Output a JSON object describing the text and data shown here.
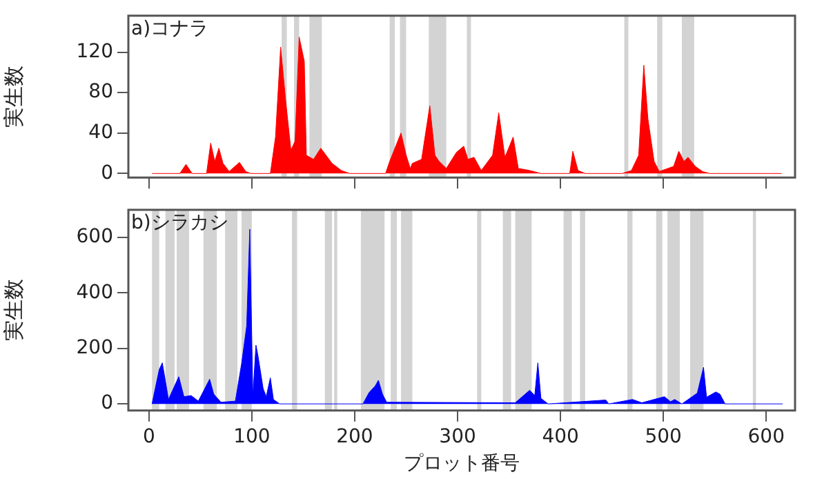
{
  "chart_data": [
    {
      "type": "area",
      "title": "a)コナラ",
      "ylabel": "実生数",
      "tick_labels": "y",
      "grid": false,
      "xlim": [
        -20,
        628
      ],
      "xticks": [
        0,
        100,
        200,
        300,
        400,
        500,
        600
      ],
      "ylim": [
        -4,
        156
      ],
      "yticks": [
        0,
        40,
        80,
        120
      ],
      "x": [
        3,
        30,
        36,
        42,
        56,
        60,
        64,
        68,
        72,
        78,
        88,
        94,
        99,
        118,
        123,
        128,
        133,
        138,
        142,
        146,
        151,
        153,
        160,
        167,
        178,
        187,
        195,
        230,
        234,
        245,
        250,
        254,
        256,
        265,
        273,
        278,
        282,
        289,
        299,
        306,
        310,
        316,
        323,
        334,
        340,
        346,
        354,
        359,
        370,
        381,
        409,
        412,
        417,
        424,
        460,
        469,
        476,
        481,
        485,
        491,
        496,
        510,
        515,
        520,
        524,
        531,
        538,
        545,
        615
      ],
      "series": [
        {
          "color": "#ff0000",
          "values": [
            0,
            0,
            9,
            0,
            0,
            30,
            12,
            25,
            10,
            2,
            11,
            2,
            0,
            0,
            36,
            125,
            71,
            23,
            32,
            135,
            111,
            18,
            14,
            25,
            10,
            3,
            0,
            0,
            12,
            40,
            18,
            5,
            10,
            14,
            67,
            18,
            12,
            5,
            21,
            27,
            14,
            16,
            3,
            18,
            60,
            16,
            36,
            5,
            3,
            0,
            0,
            22,
            3,
            0,
            0,
            3,
            18,
            107,
            54,
            12,
            2,
            7,
            22,
            12,
            16,
            7,
            2,
            0,
            0
          ]
        }
      ],
      "bands": [
        {
          "axis": "x",
          "from": 129,
          "to": 134,
          "color": "#d3d3d3"
        },
        {
          "axis": "x",
          "from": 141,
          "to": 146,
          "color": "#d3d3d3"
        },
        {
          "axis": "x",
          "from": 156,
          "to": 168,
          "color": "#d3d3d3"
        },
        {
          "axis": "x",
          "from": 234,
          "to": 239,
          "color": "#d3d3d3"
        },
        {
          "axis": "x",
          "from": 244,
          "to": 250,
          "color": "#d3d3d3"
        },
        {
          "axis": "x",
          "from": 272,
          "to": 289,
          "color": "#d3d3d3"
        },
        {
          "axis": "x",
          "from": 309,
          "to": 313,
          "color": "#d3d3d3"
        },
        {
          "axis": "x",
          "from": 462,
          "to": 466,
          "color": "#d3d3d3"
        },
        {
          "axis": "x",
          "from": 494,
          "to": 499,
          "color": "#d3d3d3"
        },
        {
          "axis": "x",
          "from": 518,
          "to": 530,
          "color": "#d3d3d3"
        }
      ]
    },
    {
      "type": "area",
      "title": "b)シラカシ",
      "ylabel": "実生数",
      "xlabel": "プロット番号",
      "grid": false,
      "xlim": [
        -20,
        628
      ],
      "xticks": [
        0,
        100,
        200,
        300,
        400,
        500,
        600
      ],
      "ylim": [
        -24,
        700
      ],
      "yticks": [
        0,
        200,
        400,
        600
      ],
      "x": [
        3,
        10,
        13,
        19,
        29,
        34,
        41,
        48,
        59,
        63,
        70,
        84,
        90,
        95,
        98,
        101,
        104,
        106,
        111,
        114,
        118,
        121,
        127,
        208,
        214,
        220,
        223,
        227,
        231,
        356,
        370,
        375,
        378,
        381,
        388,
        444,
        447,
        470,
        479,
        501,
        507,
        511,
        518,
        533,
        539,
        542,
        551,
        555,
        560,
        616
      ],
      "series": [
        {
          "color": "#0000ff",
          "values": [
            0,
            124,
            148,
            16,
            98,
            26,
            30,
            10,
            89,
            35,
            6,
            10,
            144,
            281,
            630,
            26,
            212,
            173,
            55,
            26,
            94,
            16,
            0,
            0,
            41,
            65,
            85,
            35,
            6,
            4,
            49,
            30,
            148,
            20,
            0,
            14,
            0,
            16,
            4,
            26,
            8,
            16,
            0,
            39,
            132,
            24,
            43,
            35,
            0,
            0
          ]
        }
      ],
      "bands": [
        {
          "axis": "x",
          "from": 3,
          "to": 10,
          "color": "#d3d3d3"
        },
        {
          "axis": "x",
          "from": 16,
          "to": 25,
          "color": "#d3d3d3"
        },
        {
          "axis": "x",
          "from": 27,
          "to": 39,
          "color": "#d3d3d3"
        },
        {
          "axis": "x",
          "from": 53,
          "to": 66,
          "color": "#d3d3d3"
        },
        {
          "axis": "x",
          "from": 74,
          "to": 86,
          "color": "#d3d3d3"
        },
        {
          "axis": "x",
          "from": 90,
          "to": 100,
          "color": "#d3d3d3"
        },
        {
          "axis": "x",
          "from": 139,
          "to": 144,
          "color": "#d3d3d3"
        },
        {
          "axis": "x",
          "from": 171,
          "to": 178,
          "color": "#d3d3d3"
        },
        {
          "axis": "x",
          "from": 180,
          "to": 183,
          "color": "#d3d3d3"
        },
        {
          "axis": "x",
          "from": 206,
          "to": 229,
          "color": "#d3d3d3"
        },
        {
          "axis": "x",
          "from": 235,
          "to": 241,
          "color": "#d3d3d3"
        },
        {
          "axis": "x",
          "from": 245,
          "to": 256,
          "color": "#d3d3d3"
        },
        {
          "axis": "x",
          "from": 319,
          "to": 323,
          "color": "#d3d3d3"
        },
        {
          "axis": "x",
          "from": 344,
          "to": 352,
          "color": "#d3d3d3"
        },
        {
          "axis": "x",
          "from": 356,
          "to": 372,
          "color": "#d3d3d3"
        },
        {
          "axis": "x",
          "from": 403,
          "to": 411,
          "color": "#d3d3d3"
        },
        {
          "axis": "x",
          "from": 419,
          "to": 424,
          "color": "#d3d3d3"
        },
        {
          "axis": "x",
          "from": 465,
          "to": 470,
          "color": "#d3d3d3"
        },
        {
          "axis": "x",
          "from": 493,
          "to": 499,
          "color": "#d3d3d3"
        },
        {
          "axis": "x",
          "from": 504,
          "to": 516,
          "color": "#d3d3d3"
        },
        {
          "axis": "x",
          "from": 526,
          "to": 539,
          "color": "#d3d3d3"
        },
        {
          "axis": "x",
          "from": 587,
          "to": 590,
          "color": "#d3d3d3"
        }
      ]
    }
  ]
}
